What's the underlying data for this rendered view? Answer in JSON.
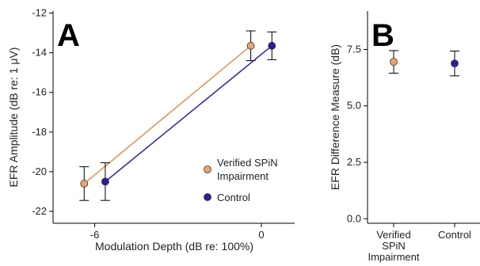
{
  "chart_data": [
    {
      "panel": "A",
      "type": "line",
      "ylabel": "EFR Amplitude (dB re: 1 μV)",
      "xlabel": "Modulation Depth (dB re: 100%)",
      "x_tick_labels": [
        "-6",
        "0"
      ],
      "y_tick_labels": [
        "-12",
        "-14",
        "-16",
        "-18",
        "-20",
        "-22"
      ],
      "y_ticks": [
        -12,
        -14,
        -16,
        -18,
        -20,
        -22
      ],
      "x_ticks": [
        -6,
        0
      ],
      "ylim": [
        -22.6,
        -11.9
      ],
      "xlim": [
        -7.5,
        1.2
      ],
      "grid": false,
      "legend_position": "bottom-right",
      "series": [
        {
          "name": "Verified SPiN Impairment",
          "color": "#e8a46a",
          "line_color": "#e09050",
          "x": [
            -6,
            0
          ],
          "y": [
            -20.6,
            -13.65
          ],
          "err": [
            0.85,
            0.75
          ]
        },
        {
          "name": "Control",
          "color": "#2b1d9c",
          "line_color": "#2b1d9c",
          "x": [
            -6,
            0
          ],
          "y": [
            -20.5,
            -13.65
          ],
          "err": [
            0.95,
            0.7
          ]
        }
      ]
    },
    {
      "panel": "B",
      "type": "scatter",
      "ylabel": "EFR Difference Measure (dB)",
      "categories": [
        "Verified SPiN Impairment",
        "Control"
      ],
      "category_lines": [
        [
          "Verified",
          "SPiN",
          "Impairment"
        ],
        [
          "Control"
        ]
      ],
      "y_tick_labels": [
        "0.0",
        "2.5",
        "5.0",
        "7.5"
      ],
      "y_ticks": [
        0,
        2.5,
        5,
        7.5
      ],
      "ylim": [
        -0.2,
        9.2
      ],
      "grid": false,
      "points": [
        {
          "category": "Verified SPiN Impairment",
          "color": "#e8a46a",
          "y": 6.95,
          "err": 0.5
        },
        {
          "category": "Control",
          "color": "#2b1d9c",
          "y": 6.88,
          "err": 0.55
        }
      ]
    }
  ]
}
